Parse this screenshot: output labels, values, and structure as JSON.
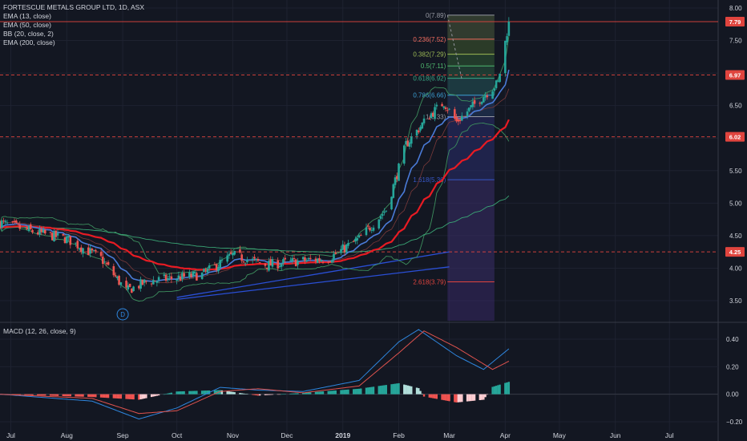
{
  "header": {
    "title": "FORTESCUE METALS GROUP LTD, 1D, ASX",
    "indicators": [
      "EMA (13, close)",
      "EMA (50, close)",
      "BB (20, close, 2)",
      "EMA (200, close)"
    ],
    "macd_label": "MACD (12, 26, close, 9)",
    "marker_label": "D"
  },
  "colors": {
    "background": "#131722",
    "up": "#26a69a",
    "down": "#ef5350",
    "ema13": "#4a7bd8",
    "ema50": "#e81b23",
    "ema200": "#3aa675",
    "bb": "#3d8f5e",
    "macd": "#2e86de",
    "signal": "#e0534e",
    "red_level": "#e0443e",
    "blue_trend": "#2a4fd6"
  },
  "price_boxes": [
    {
      "value": "7.79",
      "price": 7.79,
      "color": "#e0443e"
    },
    {
      "value": "6.97",
      "price": 6.97,
      "color": "#e0443e"
    },
    {
      "value": "6.02",
      "price": 6.02,
      "color": "#e0443e"
    },
    {
      "value": "4.25",
      "price": 4.25,
      "color": "#e0443e"
    }
  ],
  "chart_data": [
    {
      "type": "candlestick",
      "title": "FORTESCUE METALS GROUP LTD, 1D, ASX",
      "y_axis_side": "right",
      "ylim": [
        3.25,
        8.1
      ],
      "y_ticks": [
        "3.50",
        "4.00",
        "4.50",
        "5.00",
        "5.50",
        "6.00",
        "6.50",
        "7.00",
        "7.50",
        "8.00"
      ],
      "x_ticks": [
        "Jul",
        "Aug",
        "Sep",
        "Oct",
        "Nov",
        "Dec",
        "2019",
        "Feb",
        "Mar",
        "Apr",
        "May",
        "Jun",
        "Jul"
      ],
      "approx_close_path": [
        {
          "date": "2018-06-25",
          "close": 4.7
        },
        {
          "date": "2018-07-15",
          "close": 4.55
        },
        {
          "date": "2018-08-01",
          "close": 4.45
        },
        {
          "date": "2018-08-20",
          "close": 4.15
        },
        {
          "date": "2018-09-03",
          "close": 3.65
        },
        {
          "date": "2018-09-15",
          "close": 3.8
        },
        {
          "date": "2018-10-01",
          "close": 3.85
        },
        {
          "date": "2018-10-15",
          "close": 3.9
        },
        {
          "date": "2018-11-01",
          "close": 4.2
        },
        {
          "date": "2018-11-20",
          "close": 4.05
        },
        {
          "date": "2018-12-05",
          "close": 4.1
        },
        {
          "date": "2018-12-24",
          "close": 4.15
        },
        {
          "date": "2019-01-10",
          "close": 4.45
        },
        {
          "date": "2019-01-25",
          "close": 4.9
        },
        {
          "date": "2019-02-05",
          "close": 5.9
        },
        {
          "date": "2019-02-18",
          "close": 6.35
        },
        {
          "date": "2019-02-26",
          "close": 6.55
        },
        {
          "date": "2019-03-05",
          "close": 6.25
        },
        {
          "date": "2019-03-18",
          "close": 6.6
        },
        {
          "date": "2019-03-28",
          "close": 6.85
        },
        {
          "date": "2019-04-03",
          "close": 7.79
        }
      ],
      "horizontal_levels": [
        7.79,
        6.97,
        6.02,
        4.25
      ],
      "fibonacci": [
        {
          "label": "0(7.89)",
          "price": 7.89,
          "color": "#9598a1"
        },
        {
          "label": "0.236(7.52)",
          "price": 7.52,
          "color": "#f06b5e"
        },
        {
          "label": "0.382(7.29)",
          "price": 7.29,
          "color": "#9dbb55"
        },
        {
          "label": "0.5(7.11)",
          "price": 7.11,
          "color": "#4fb86e"
        },
        {
          "label": "0.618(6.92)",
          "price": 6.92,
          "color": "#38a784"
        },
        {
          "label": "0.786(6.66)",
          "price": 6.66,
          "color": "#3c9fd4"
        },
        {
          "label": "1(6.33)",
          "price": 6.33,
          "color": "#9598a1"
        },
        {
          "label": "1.618(5.36)",
          "price": 5.36,
          "color": "#3757c7"
        },
        {
          "label": "2.618(3.79)",
          "price": 3.79,
          "color": "#e0443e"
        }
      ]
    },
    {
      "type": "macd",
      "title": "MACD (12, 26, close, 9)",
      "ylim": [
        -0.24,
        0.52
      ],
      "y_ticks": [
        "0.40",
        "0.20",
        "0.00",
        "−0.20"
      ],
      "macd_path": [
        {
          "date": "2018-06-25",
          "value": 0.0
        },
        {
          "date": "2018-08-15",
          "value": -0.05
        },
        {
          "date": "2018-09-10",
          "value": -0.18
        },
        {
          "date": "2018-10-01",
          "value": -0.1
        },
        {
          "date": "2018-10-25",
          "value": 0.05
        },
        {
          "date": "2018-11-15",
          "value": 0.03
        },
        {
          "date": "2018-12-10",
          "value": 0.02
        },
        {
          "date": "2019-01-10",
          "value": 0.1
        },
        {
          "date": "2019-02-01",
          "value": 0.38
        },
        {
          "date": "2019-02-12",
          "value": 0.47
        },
        {
          "date": "2019-03-05",
          "value": 0.28
        },
        {
          "date": "2019-03-20",
          "value": 0.18
        },
        {
          "date": "2019-04-03",
          "value": 0.33
        }
      ],
      "signal_path": [
        {
          "date": "2018-06-25",
          "value": 0.0
        },
        {
          "date": "2018-08-15",
          "value": -0.03
        },
        {
          "date": "2018-09-10",
          "value": -0.14
        },
        {
          "date": "2018-10-01",
          "value": -0.12
        },
        {
          "date": "2018-10-25",
          "value": 0.02
        },
        {
          "date": "2018-11-15",
          "value": 0.04
        },
        {
          "date": "2018-12-10",
          "value": 0.01
        },
        {
          "date": "2019-01-10",
          "value": 0.06
        },
        {
          "date": "2019-02-01",
          "value": 0.3
        },
        {
          "date": "2019-02-15",
          "value": 0.46
        },
        {
          "date": "2019-03-05",
          "value": 0.34
        },
        {
          "date": "2019-03-25",
          "value": 0.18
        },
        {
          "date": "2019-04-03",
          "value": 0.24
        }
      ]
    }
  ]
}
